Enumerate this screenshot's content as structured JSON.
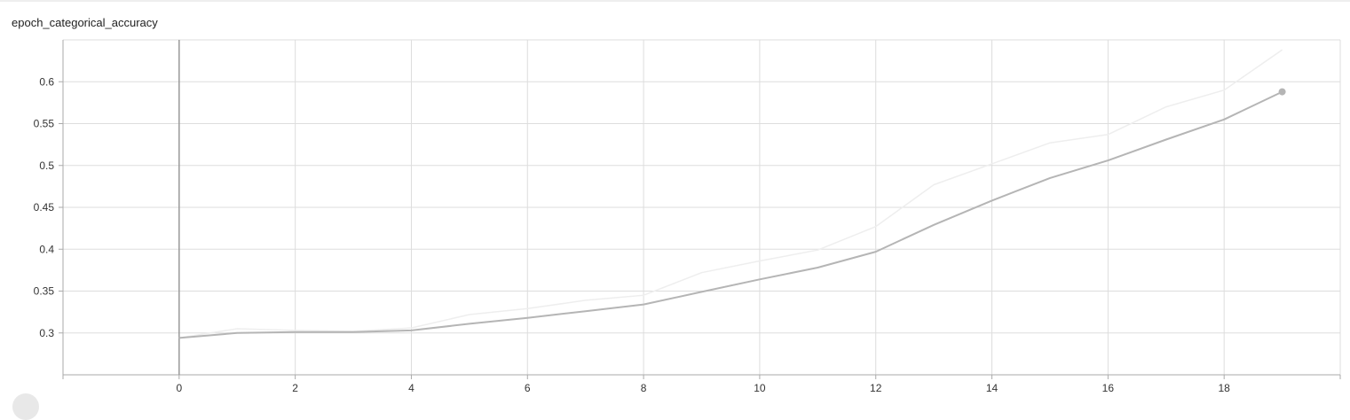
{
  "chart_data": {
    "type": "line",
    "title": "epoch_categorical_accuracy",
    "xlabel": "",
    "ylabel": "",
    "x_ticks": [
      0,
      2,
      4,
      6,
      8,
      10,
      12,
      14,
      16,
      18
    ],
    "y_ticks": [
      0.3,
      0.35,
      0.4,
      0.45,
      0.5,
      0.55,
      0.6
    ],
    "xlim": [
      -2,
      20
    ],
    "ylim": [
      0.25,
      0.65
    ],
    "grid": true,
    "series": [
      {
        "role": "raw",
        "color": "#eeeeee",
        "x": [
          0,
          1,
          2,
          3,
          4,
          5,
          6,
          7,
          8,
          9,
          10,
          11,
          12,
          13,
          14,
          15,
          16,
          17,
          18,
          19
        ],
        "y": [
          0.294,
          0.305,
          0.303,
          0.302,
          0.306,
          0.322,
          0.329,
          0.339,
          0.345,
          0.372,
          0.386,
          0.399,
          0.427,
          0.477,
          0.502,
          0.527,
          0.537,
          0.57,
          0.59,
          0.638
        ]
      },
      {
        "role": "smoothed",
        "color": "#b5b5b5",
        "x": [
          0,
          1,
          2,
          3,
          4,
          5,
          6,
          7,
          8,
          9,
          10,
          11,
          12,
          13,
          14,
          15,
          16,
          17,
          18,
          19
        ],
        "y": [
          0.294,
          0.3,
          0.301,
          0.301,
          0.303,
          0.311,
          0.318,
          0.326,
          0.334,
          0.349,
          0.364,
          0.378,
          0.397,
          0.429,
          0.458,
          0.485,
          0.506,
          0.531,
          0.555,
          0.588
        ]
      }
    ]
  }
}
